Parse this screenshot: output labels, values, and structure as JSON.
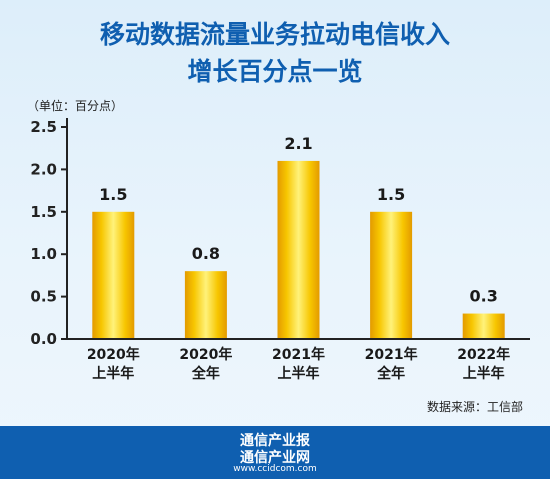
{
  "chart_data": {
    "type": "bar",
    "title": [
      "移动数据流量业务拉动电信收入",
      "增长百分点一览"
    ],
    "unit_label": "（单位：百分点）",
    "categories": [
      [
        "2020年",
        "上半年"
      ],
      [
        "2020年",
        "全年"
      ],
      [
        "2021年",
        "上半年"
      ],
      [
        "2021年",
        "全年"
      ],
      [
        "2022年",
        "上半年"
      ]
    ],
    "values": [
      1.5,
      0.8,
      2.1,
      1.5,
      0.3
    ],
    "value_labels": [
      "1.5",
      "0.8",
      "2.1",
      "1.5",
      "0.3"
    ],
    "yticks": [
      "0.0",
      "0.5",
      "1.0",
      "1.5",
      "2.0",
      "2.5"
    ],
    "ylim": [
      0,
      2.5
    ],
    "grid": false,
    "source": "数据来源：工信部",
    "bar_color": "#f5c000"
  },
  "footer": {
    "line1": "通信产业报",
    "line2": "通信产业网",
    "line3": "www.ccidcom.com"
  }
}
